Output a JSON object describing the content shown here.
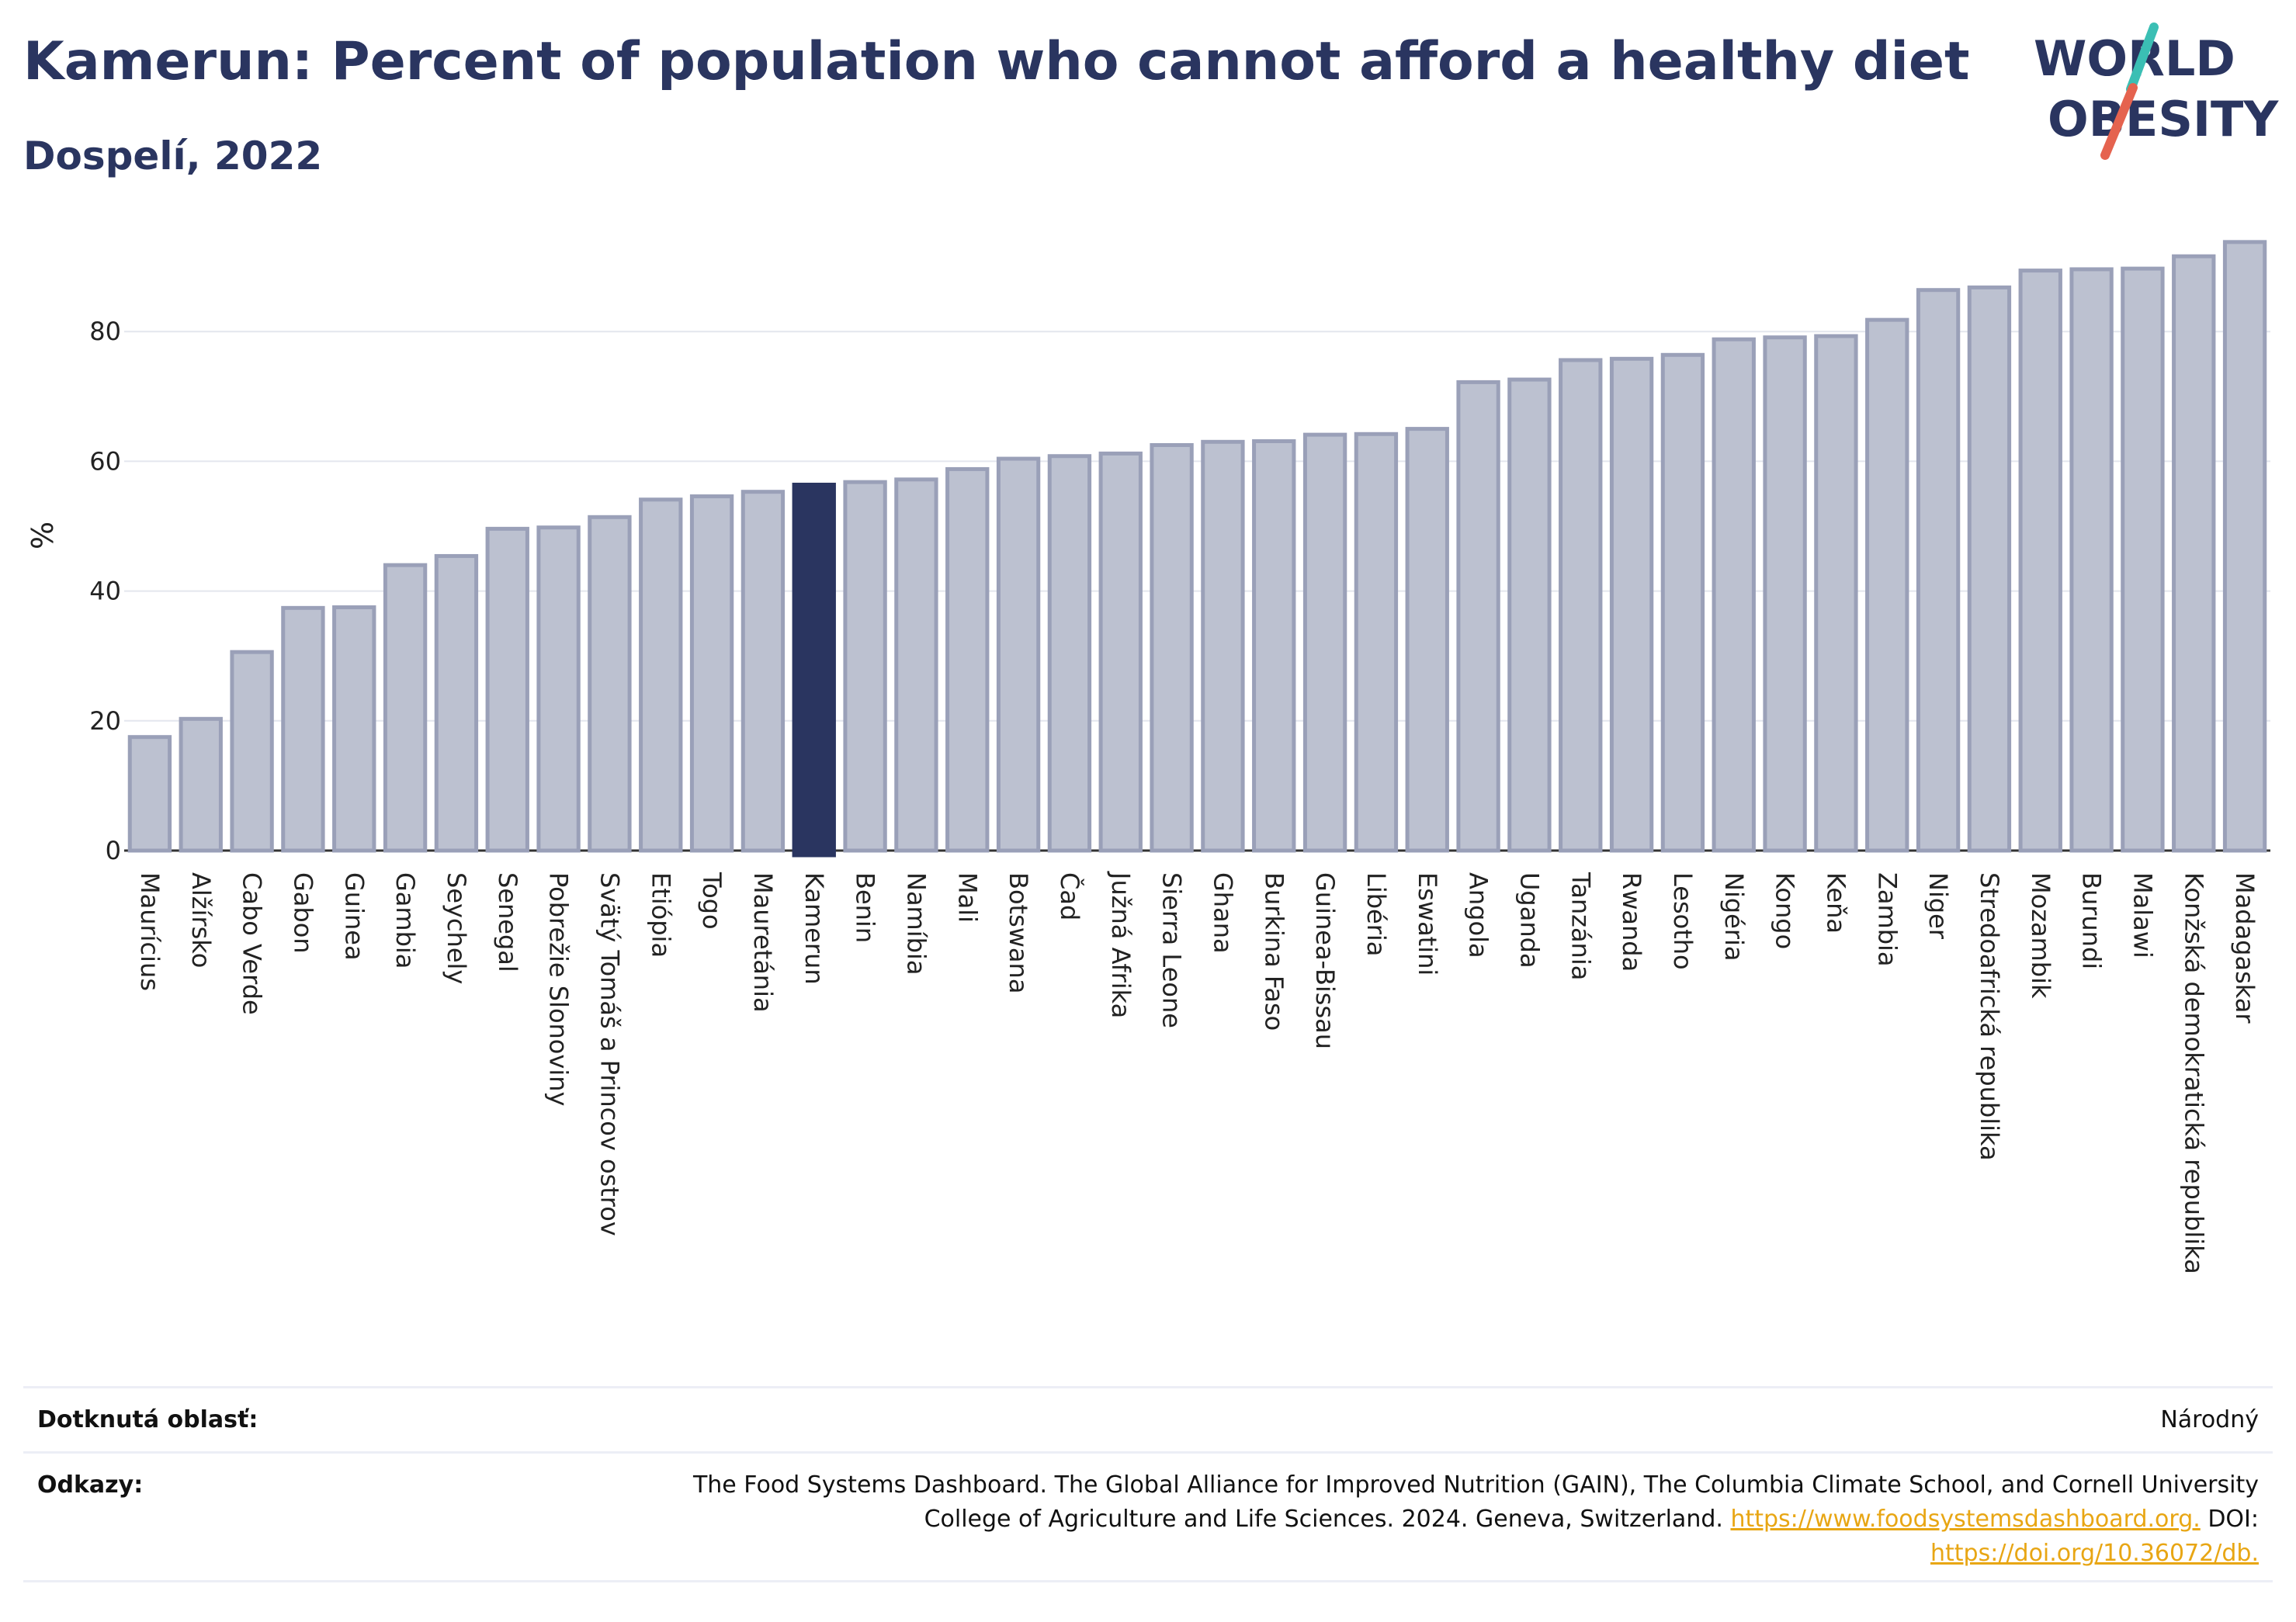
{
  "header": {
    "title": "Kamerun: Percent of population who cannot afford a healthy diet",
    "subtitle": "Dospelí, 2022"
  },
  "logo": {
    "line1": "WORLD",
    "line2": "OBESITY"
  },
  "chart_data": {
    "type": "bar",
    "ylabel": "%",
    "ylim": [
      0,
      100
    ],
    "yticks": [
      0,
      20,
      40,
      60,
      80
    ],
    "grid": true,
    "highlight": "Kamerun",
    "colors": {
      "bar": "#bcc1d0",
      "bar_border": "#9aa0b8",
      "highlight": "#2a3560"
    },
    "categories": [
      "Maurícius",
      "Alžírsko",
      "Cabo Verde",
      "Gabon",
      "Guinea",
      "Gambia",
      "Seychely",
      "Senegal",
      "Pobrežie Slonoviny",
      "Svätý Tomáš a Princov ostrov",
      "Etiópia",
      "Togo",
      "Mauretánia",
      "Kamerun",
      "Benin",
      "Namíbia",
      "Mali",
      "Botswana",
      "Čad",
      "Južná Afrika",
      "Sierra Leone",
      "Ghana",
      "Burkina Faso",
      "Guinea-Bissau",
      "Libéria",
      "Eswatini",
      "Angola",
      "Uganda",
      "Tanzánia",
      "Rwanda",
      "Lesotho",
      "Nigéria",
      "Kongo",
      "Keňa",
      "Zambia",
      "Niger",
      "Stredoafrická republika",
      "Mozambik",
      "Burundi",
      "Malawi",
      "Konžská demokratická republika",
      "Madagaskar"
    ],
    "values": [
      17.5,
      20.3,
      30.6,
      37.4,
      37.5,
      44.0,
      45.4,
      49.6,
      49.8,
      51.4,
      54.1,
      54.6,
      55.3,
      56.4,
      56.8,
      57.2,
      58.8,
      60.4,
      60.8,
      61.2,
      62.5,
      63.0,
      63.1,
      64.1,
      64.2,
      65.0,
      72.2,
      72.6,
      75.6,
      75.8,
      76.4,
      78.8,
      79.1,
      79.3,
      81.8,
      86.4,
      86.8,
      89.4,
      89.6,
      89.7,
      91.6,
      93.8
    ]
  },
  "footer": {
    "area_label": "Dotknutá oblasť:",
    "area_value": "Národný",
    "refs_label": "Odkazy:",
    "refs_line1": "The Food Systems Dashboard. The Global Alliance for Improved Nutrition (GAIN), The Columbia Climate School, and Cornell University",
    "refs_line2": "College of Agriculture and Life Sciences. 2024. Geneva, Switzerland.",
    "refs_link1": "https://www.foodsystemsdashboard.org.",
    "refs_doi": "DOI:",
    "refs_link2": "https://doi.org/10.36072/db."
  }
}
